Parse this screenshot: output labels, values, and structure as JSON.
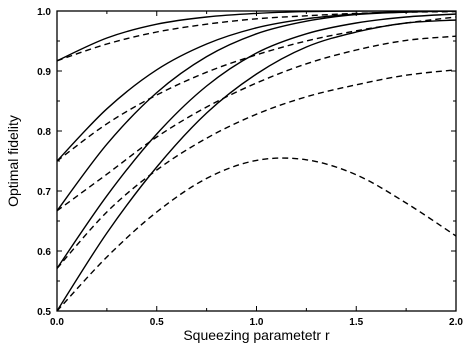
{
  "chart_data": {
    "type": "line",
    "title": "",
    "xlabel": "Squeezing parametetr r",
    "ylabel": "Optimal fidelity",
    "xlim": [
      0.0,
      2.0
    ],
    "ylim": [
      0.5,
      1.0
    ],
    "xticks": [
      0.0,
      0.5,
      1.0,
      1.5,
      2.0
    ],
    "xtick_labels": [
      "0.0",
      "0.5",
      "1.0",
      "1.5",
      "2.0"
    ],
    "yticks": [
      0.5,
      0.6,
      0.7,
      0.8,
      0.9,
      1.0
    ],
    "ytick_labels": [
      "0.5",
      "0.6",
      "0.7",
      "0.8",
      "0.9",
      "1.0"
    ],
    "grid": false,
    "legend": "none",
    "x": [
      0.0,
      0.25,
      0.5,
      0.75,
      1.0,
      1.25,
      1.5,
      1.75,
      2.0
    ],
    "series": [
      {
        "style": "solid",
        "values": [
          0.917,
          0.955,
          0.978,
          0.99,
          0.996,
          0.999,
          1.0,
          1.0,
          1.0
        ]
      },
      {
        "style": "dashed",
        "values": [
          0.917,
          0.945,
          0.965,
          0.978,
          0.987,
          0.992,
          0.996,
          0.998,
          0.999
        ]
      },
      {
        "style": "solid",
        "values": [
          0.75,
          0.837,
          0.902,
          0.945,
          0.972,
          0.987,
          0.995,
          0.999,
          1.0
        ]
      },
      {
        "style": "dashed",
        "values": [
          0.75,
          0.812,
          0.86,
          0.898,
          0.927,
          0.95,
          0.967,
          0.98,
          0.99
        ]
      },
      {
        "style": "solid",
        "values": [
          0.667,
          0.778,
          0.864,
          0.924,
          0.962,
          0.983,
          0.994,
          0.998,
          1.0
        ]
      },
      {
        "style": "dashed",
        "values": [
          0.667,
          0.728,
          0.79,
          0.84,
          0.88,
          0.912,
          0.935,
          0.951,
          0.958
        ]
      },
      {
        "style": "solid",
        "values": [
          0.571,
          0.692,
          0.795,
          0.875,
          0.93,
          0.962,
          0.98,
          0.99,
          0.995
        ]
      },
      {
        "style": "dashed",
        "values": [
          0.571,
          0.665,
          0.735,
          0.788,
          0.828,
          0.857,
          0.877,
          0.893,
          0.902
        ]
      },
      {
        "style": "solid",
        "values": [
          0.5,
          0.63,
          0.74,
          0.83,
          0.895,
          0.94,
          0.965,
          0.98,
          0.985
        ]
      },
      {
        "style": "dashed",
        "values": [
          0.5,
          0.59,
          0.665,
          0.721,
          0.751,
          0.752,
          0.727,
          0.68,
          0.625
        ]
      }
    ]
  }
}
